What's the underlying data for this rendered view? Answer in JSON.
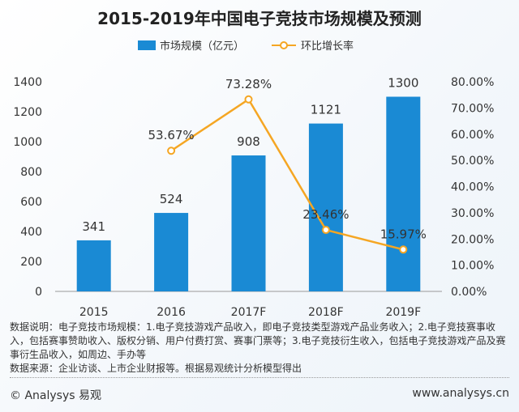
{
  "chart_data": {
    "type": "bar+line",
    "title": "2015-2019年中国电子竞技市场规模及预测",
    "categories": [
      "2015",
      "2016",
      "2017F",
      "2018F",
      "2019F"
    ],
    "series": [
      {
        "name": "市场规模（亿元）",
        "type": "bar",
        "axis": "left",
        "values": [
          341,
          524,
          908,
          1121,
          1300
        ],
        "labels": [
          "341",
          "524",
          "908",
          "1121",
          "1300"
        ],
        "color": "#1a8ad4"
      },
      {
        "name": "环比增长率",
        "type": "line",
        "axis": "right",
        "values": [
          null,
          53.67,
          73.28,
          23.46,
          15.97
        ],
        "labels": [
          "",
          "53.67%",
          "73.28%",
          "23.46%",
          "15.97%"
        ],
        "color": "#f5a623"
      }
    ],
    "yleft": {
      "lim": [
        0,
        1400
      ],
      "ticks": [
        "0",
        "200",
        "400",
        "600",
        "800",
        "1000",
        "1200",
        "1400"
      ]
    },
    "yright": {
      "lim": [
        0,
        80
      ],
      "ticks": [
        "0.00%",
        "10.00%",
        "20.00%",
        "30.00%",
        "40.00%",
        "50.00%",
        "60.00%",
        "70.00%",
        "80.00%"
      ]
    },
    "legend": "top",
    "grid": false
  },
  "notes": {
    "description": "数据说明：电子竞技市场规模：1.电子竞技游戏产品收入，即电子竞技类型游戏产品业务收入；2.电子竞技赛事收入，包括赛事赞助收入、版权分销、用户付费打赏、赛事门票等；3.电子竞技衍生收入，包括电子竞技游戏产品及赛事衍生品收入，如周边、手办等",
    "source": "数据来源：企业访谈、上市企业财报等。根据易观统计分析模型得出"
  },
  "footer": {
    "copyright": "© Analysys 易观",
    "url": "www.analysys.cn"
  }
}
